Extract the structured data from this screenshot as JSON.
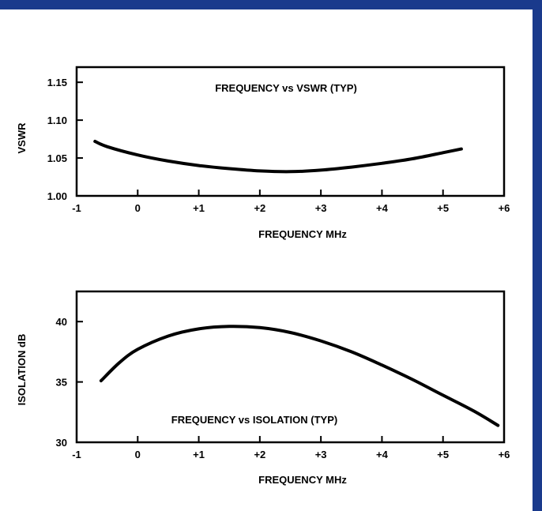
{
  "colors": {
    "frame": "#1a3a8c",
    "background": "#ffffff",
    "ink": "#000000"
  },
  "chart_data": [
    {
      "type": "line",
      "title": "FREQUENCY vs VSWR (TYP)",
      "xlabel": "FREQUENCY MHz",
      "ylabel": "VSWR",
      "xlim": [
        -1,
        6
      ],
      "ylim": [
        1.0,
        1.17
      ],
      "x_ticks": [
        -1,
        0,
        1,
        2,
        3,
        4,
        5,
        6
      ],
      "x_tick_labels": [
        "-1",
        "0",
        "+1",
        "+2",
        "+3",
        "+4",
        "+5",
        "+6"
      ],
      "y_ticks": [
        1.0,
        1.05,
        1.1,
        1.15
      ],
      "y_tick_labels": [
        "1.00",
        "1.05",
        "1.10",
        "1.15"
      ],
      "grid": false,
      "series": [
        {
          "x": [
            -0.7,
            -0.5,
            0,
            0.5,
            1,
            1.5,
            2,
            2.5,
            3,
            3.5,
            4,
            4.5,
            5,
            5.3
          ],
          "y": [
            1.072,
            1.065,
            1.054,
            1.046,
            1.04,
            1.036,
            1.033,
            1.032,
            1.034,
            1.038,
            1.043,
            1.049,
            1.057,
            1.062
          ]
        }
      ]
    },
    {
      "type": "line",
      "title": "FREQUENCY vs ISOLATION (TYP)",
      "xlabel": "FREQUENCY MHz",
      "ylabel": "ISOLATION dB",
      "xlim": [
        -1,
        6
      ],
      "ylim": [
        30,
        42.5
      ],
      "x_ticks": [
        -1,
        0,
        1,
        2,
        3,
        4,
        5,
        6
      ],
      "x_tick_labels": [
        "-1",
        "0",
        "+1",
        "+2",
        "+3",
        "+4",
        "+5",
        "+6"
      ],
      "y_ticks": [
        30,
        35,
        40
      ],
      "y_tick_labels": [
        "30",
        "35",
        "40"
      ],
      "grid": false,
      "series": [
        {
          "x": [
            -0.6,
            -0.3,
            0,
            0.5,
            1,
            1.5,
            2,
            2.5,
            3,
            3.5,
            4,
            4.5,
            5,
            5.5,
            5.9
          ],
          "y": [
            35.1,
            36.6,
            37.7,
            38.8,
            39.4,
            39.6,
            39.5,
            39.1,
            38.4,
            37.5,
            36.4,
            35.2,
            33.9,
            32.6,
            31.4
          ]
        }
      ]
    }
  ]
}
